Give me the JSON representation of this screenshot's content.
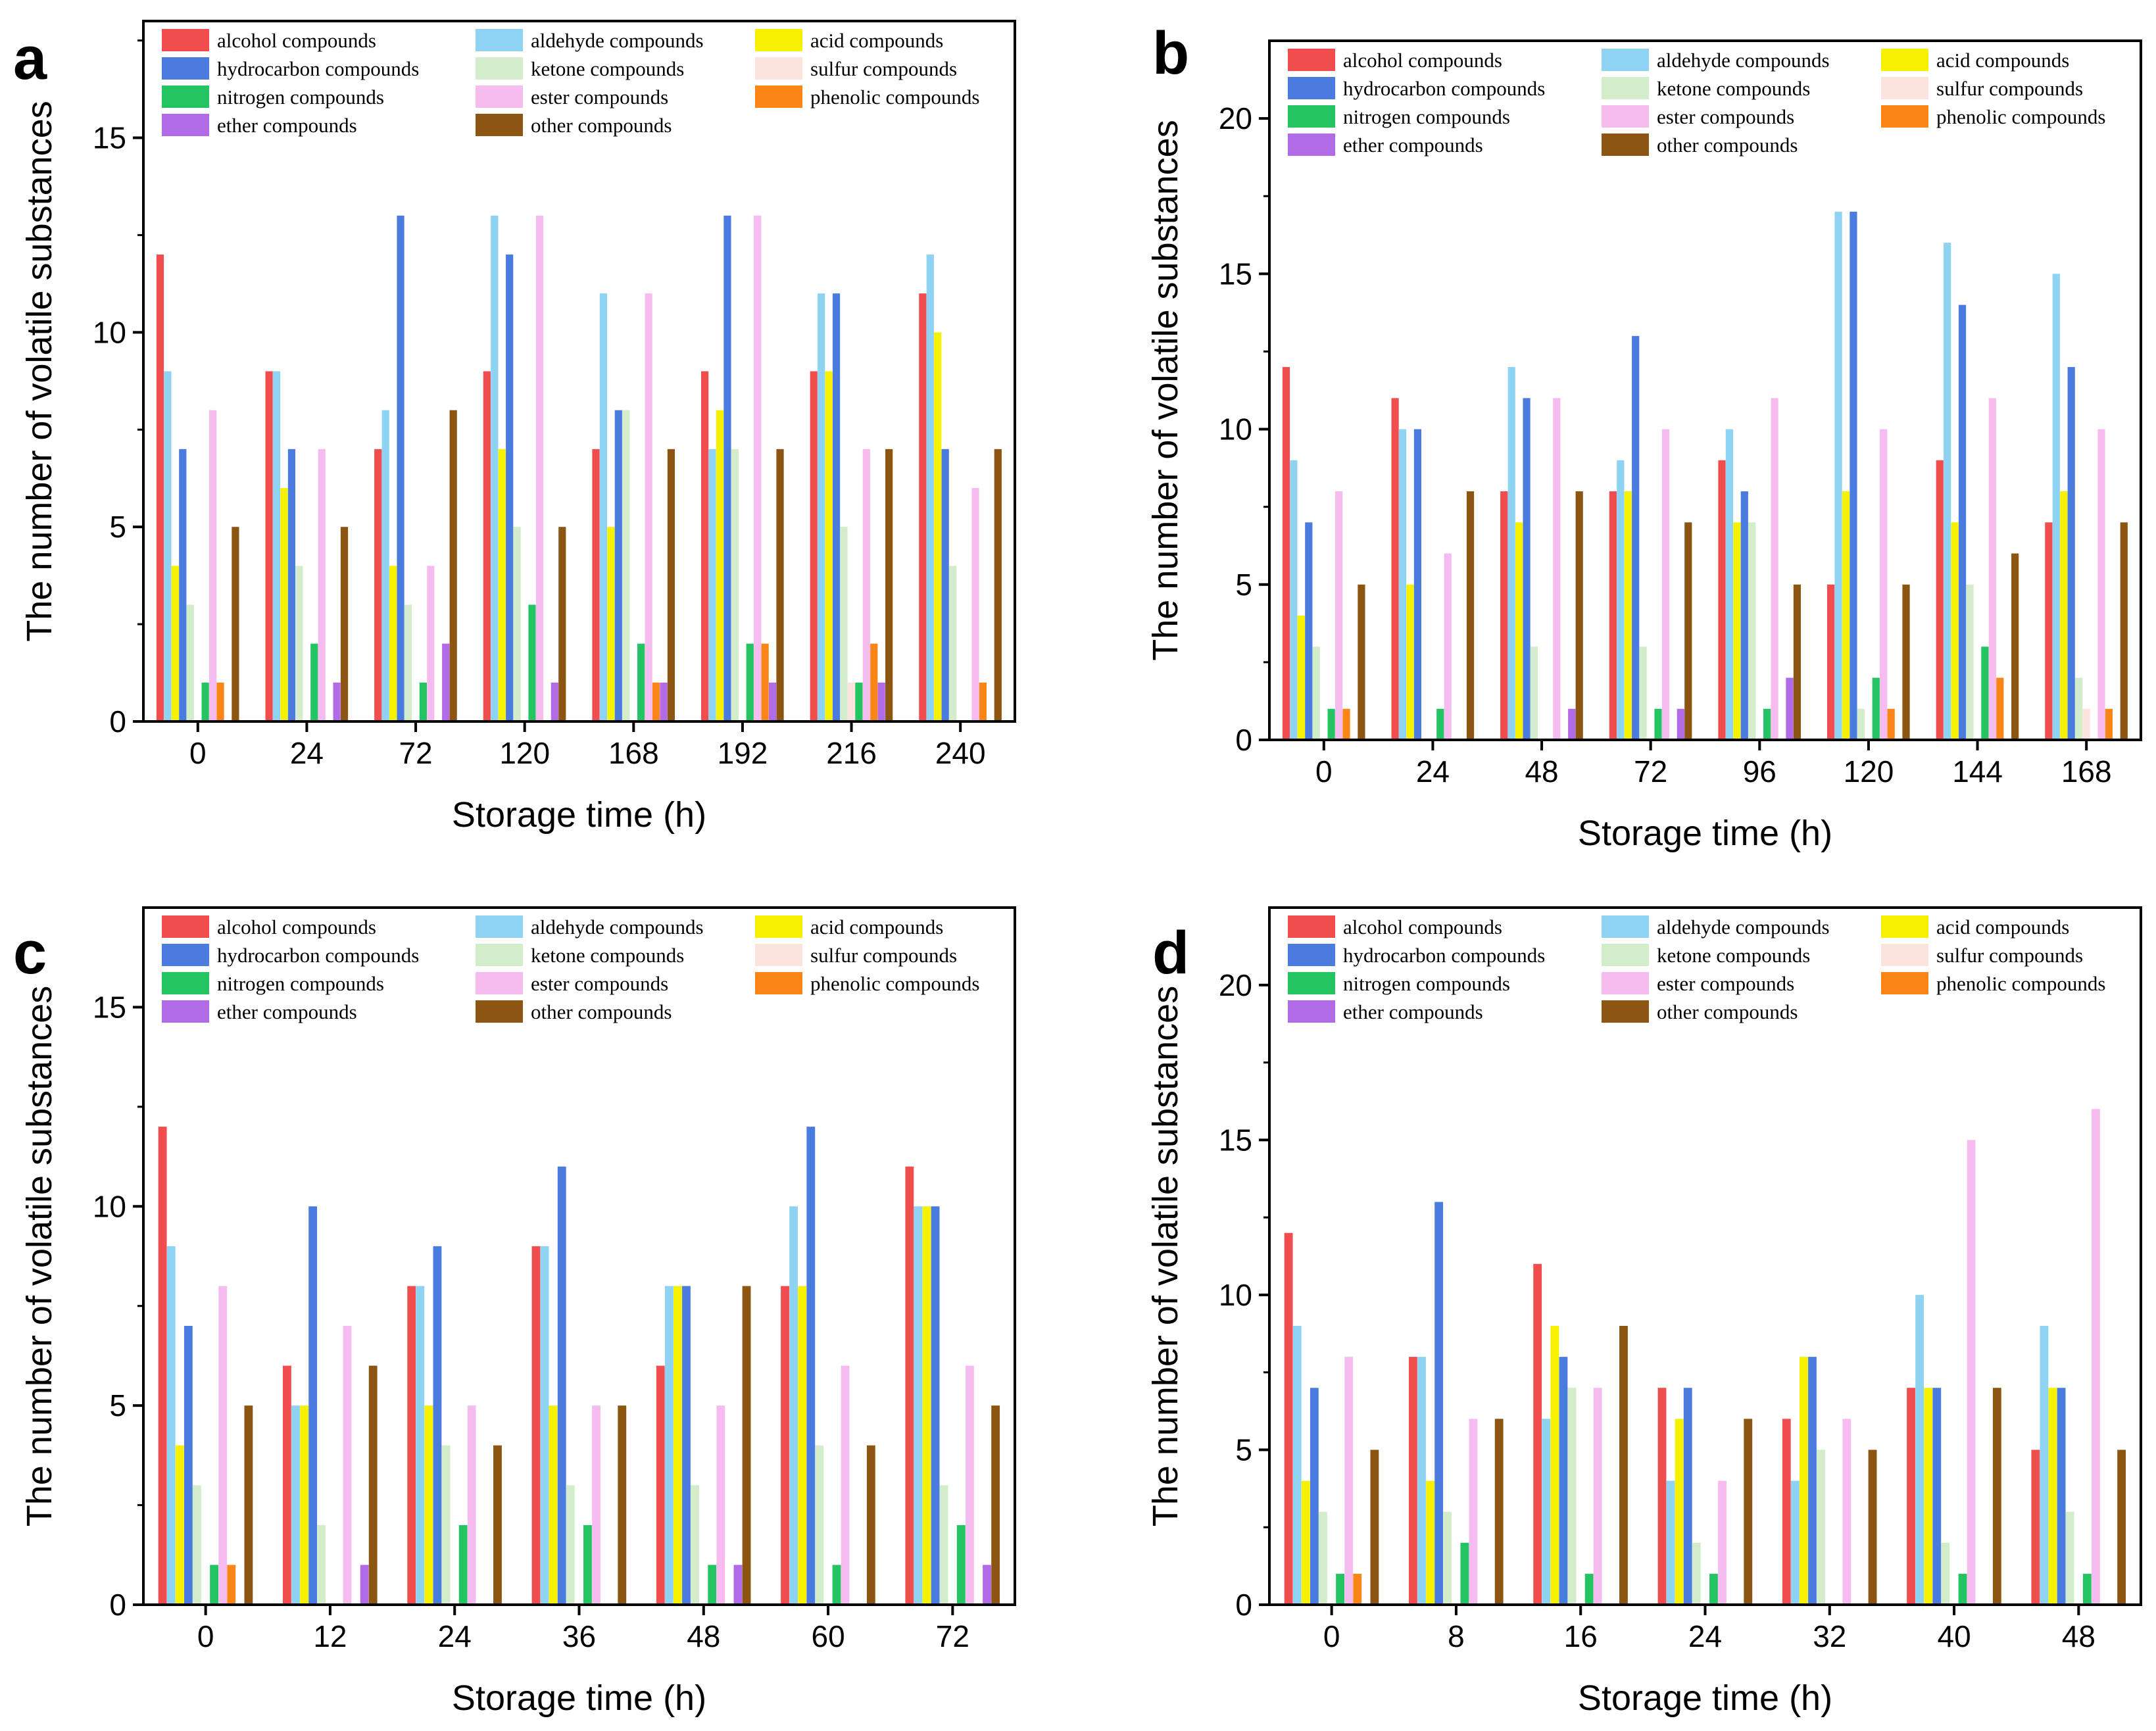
{
  "chart_data": [
    {
      "panel": "a",
      "type": "bar",
      "xlabel": "Storage time (h)",
      "ylabel": "The number of volatile substances",
      "ylim": [
        0,
        18
      ],
      "yticks": [
        0,
        5,
        10,
        15
      ],
      "legend_position": "top",
      "categories": [
        "0",
        "24",
        "72",
        "120",
        "168",
        "192",
        "216",
        "240"
      ],
      "series": [
        {
          "name": "alcohol compounds",
          "values": [
            12,
            9,
            7,
            9,
            7,
            9,
            9,
            11
          ]
        },
        {
          "name": "aldehyde compounds",
          "values": [
            9,
            9,
            8,
            13,
            11,
            7,
            11,
            12
          ]
        },
        {
          "name": "acid compounds",
          "values": [
            4,
            6,
            4,
            7,
            5,
            8,
            9,
            10
          ]
        },
        {
          "name": "hydrocarbon compounds",
          "values": [
            7,
            7,
            13,
            12,
            8,
            13,
            11,
            7
          ]
        },
        {
          "name": "ketone compounds",
          "values": [
            3,
            4,
            3,
            5,
            8,
            7,
            5,
            4
          ]
        },
        {
          "name": "sulfur compounds",
          "values": [
            0,
            0,
            0,
            0,
            0,
            0,
            1,
            0
          ]
        },
        {
          "name": "nitrogen compounds",
          "values": [
            1,
            2,
            1,
            3,
            2,
            2,
            1,
            0
          ]
        },
        {
          "name": "ester compounds",
          "values": [
            8,
            7,
            4,
            13,
            11,
            13,
            7,
            6
          ]
        },
        {
          "name": "phenolic compounds",
          "values": [
            1,
            0,
            0,
            0,
            1,
            2,
            2,
            1
          ]
        },
        {
          "name": "ether compounds",
          "values": [
            0,
            1,
            2,
            1,
            1,
            1,
            1,
            0
          ]
        },
        {
          "name": "other compounds",
          "values": [
            5,
            5,
            8,
            5,
            7,
            7,
            7,
            7
          ]
        }
      ]
    },
    {
      "panel": "b",
      "type": "bar",
      "xlabel": "Storage time (h)",
      "ylabel": "The number of volatile substances",
      "ylim": [
        0,
        22.5
      ],
      "yticks": [
        0,
        5,
        10,
        15,
        20
      ],
      "legend_position": "top",
      "categories": [
        "0",
        "24",
        "48",
        "72",
        "96",
        "120",
        "144",
        "168"
      ],
      "series": [
        {
          "name": "alcohol compounds",
          "values": [
            12,
            11,
            8,
            8,
            9,
            5,
            9,
            7
          ]
        },
        {
          "name": "aldehyde compounds",
          "values": [
            9,
            10,
            12,
            9,
            10,
            17,
            16,
            15
          ]
        },
        {
          "name": "acid compounds",
          "values": [
            4,
            5,
            7,
            8,
            7,
            8,
            7,
            8
          ]
        },
        {
          "name": "hydrocarbon compounds",
          "values": [
            7,
            10,
            11,
            13,
            8,
            17,
            14,
            12
          ]
        },
        {
          "name": "ketone compounds",
          "values": [
            3,
            0,
            3,
            3,
            7,
            1,
            5,
            2
          ]
        },
        {
          "name": "sulfur compounds",
          "values": [
            0,
            0,
            0,
            0,
            0,
            0,
            0,
            1
          ]
        },
        {
          "name": "nitrogen compounds",
          "values": [
            1,
            1,
            0,
            1,
            1,
            2,
            3,
            0
          ]
        },
        {
          "name": "ester compounds",
          "values": [
            8,
            6,
            11,
            10,
            11,
            10,
            11,
            10
          ]
        },
        {
          "name": "phenolic compounds",
          "values": [
            1,
            0,
            0,
            0,
            0,
            1,
            2,
            1
          ]
        },
        {
          "name": "ether compounds",
          "values": [
            0,
            0,
            1,
            1,
            2,
            0,
            0,
            0
          ]
        },
        {
          "name": "other compounds",
          "values": [
            5,
            8,
            8,
            7,
            5,
            5,
            6,
            7
          ]
        }
      ]
    },
    {
      "panel": "c",
      "type": "bar",
      "xlabel": "Storage time (h)",
      "ylabel": "The number of volatile substances",
      "ylim": [
        0,
        17.5
      ],
      "yticks": [
        0,
        5,
        10,
        15
      ],
      "legend_position": "top",
      "categories": [
        "0",
        "12",
        "24",
        "36",
        "48",
        "60",
        "72"
      ],
      "series": [
        {
          "name": "alcohol compounds",
          "values": [
            12,
            6,
            8,
            9,
            6,
            8,
            11
          ]
        },
        {
          "name": "aldehyde compounds",
          "values": [
            9,
            5,
            8,
            9,
            8,
            10,
            10
          ]
        },
        {
          "name": "acid compounds",
          "values": [
            4,
            5,
            5,
            5,
            8,
            8,
            10
          ]
        },
        {
          "name": "hydrocarbon compounds",
          "values": [
            7,
            10,
            9,
            11,
            8,
            12,
            10
          ]
        },
        {
          "name": "ketone compounds",
          "values": [
            3,
            2,
            4,
            3,
            3,
            4,
            3
          ]
        },
        {
          "name": "sulfur compounds",
          "values": [
            0,
            0,
            0,
            0,
            0,
            0,
            0
          ]
        },
        {
          "name": "nitrogen compounds",
          "values": [
            1,
            0,
            2,
            2,
            1,
            1,
            2
          ]
        },
        {
          "name": "ester compounds",
          "values": [
            8,
            7,
            5,
            5,
            5,
            6,
            6
          ]
        },
        {
          "name": "phenolic compounds",
          "values": [
            1,
            0,
            0,
            0,
            0,
            0,
            0
          ]
        },
        {
          "name": "ether compounds",
          "values": [
            0,
            1,
            0,
            0,
            1,
            0,
            1
          ]
        },
        {
          "name": "other compounds",
          "values": [
            5,
            6,
            4,
            5,
            8,
            4,
            5
          ]
        }
      ]
    },
    {
      "panel": "d",
      "type": "bar",
      "xlabel": "Storage time (h)",
      "ylabel": "The number of volatile substances",
      "ylim": [
        0,
        22.5
      ],
      "yticks": [
        0,
        5,
        10,
        15,
        20
      ],
      "legend_position": "top",
      "categories": [
        "0",
        "8",
        "16",
        "24",
        "32",
        "40",
        "48"
      ],
      "series": [
        {
          "name": "alcohol compounds",
          "values": [
            12,
            8,
            11,
            7,
            6,
            7,
            5
          ]
        },
        {
          "name": "aldehyde compounds",
          "values": [
            9,
            8,
            6,
            4,
            4,
            10,
            9
          ]
        },
        {
          "name": "acid compounds",
          "values": [
            4,
            4,
            9,
            6,
            8,
            7,
            7
          ]
        },
        {
          "name": "hydrocarbon compounds",
          "values": [
            7,
            13,
            8,
            7,
            8,
            7,
            7
          ]
        },
        {
          "name": "ketone compounds",
          "values": [
            3,
            3,
            7,
            2,
            5,
            2,
            3
          ]
        },
        {
          "name": "sulfur compounds",
          "values": [
            0,
            0,
            0,
            0,
            0,
            0,
            0
          ]
        },
        {
          "name": "nitrogen compounds",
          "values": [
            1,
            2,
            1,
            1,
            0,
            1,
            1
          ]
        },
        {
          "name": "ester compounds",
          "values": [
            8,
            6,
            7,
            4,
            6,
            15,
            16
          ]
        },
        {
          "name": "phenolic compounds",
          "values": [
            1,
            0,
            0,
            0,
            0,
            0,
            0
          ]
        },
        {
          "name": "ether compounds",
          "values": [
            0,
            0,
            0,
            0,
            0,
            0,
            0
          ]
        },
        {
          "name": "other compounds",
          "values": [
            5,
            6,
            9,
            6,
            5,
            7,
            5
          ]
        }
      ]
    }
  ],
  "series_colors": {
    "alcohol compounds": "#f04d4f",
    "aldehyde compounds": "#8ed3f1",
    "acid compounds": "#f5f100",
    "hydrocarbon compounds": "#4a7cdf",
    "ketone compounds": "#d3edcb",
    "sulfur compounds": "#fbe3de",
    "nitrogen compounds": "#23c461",
    "ester compounds": "#f6bcf0",
    "phenolic compounds": "#fb8517",
    "ether compounds": "#b16be6",
    "other compounds": "#8c5612"
  },
  "legend_order": [
    "alcohol compounds",
    "aldehyde compounds",
    "acid compounds",
    "hydrocarbon compounds",
    "ketone compounds",
    "sulfur compounds",
    "nitrogen compounds",
    "ester compounds",
    "phenolic compounds",
    "ether compounds",
    "other compounds"
  ]
}
